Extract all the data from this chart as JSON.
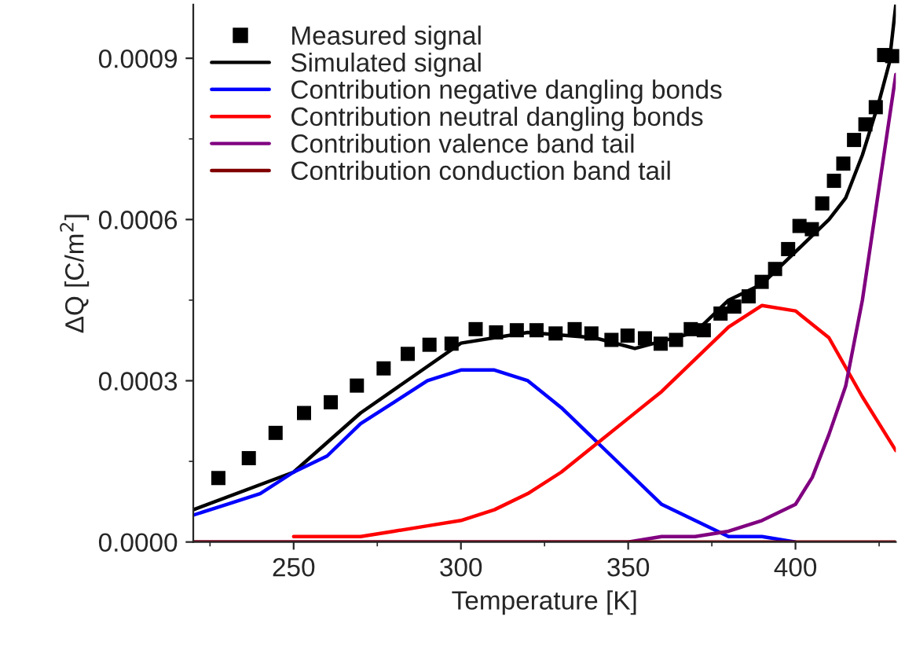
{
  "chart_data": {
    "type": "line",
    "xlabel": "Temperature [K]",
    "ylabel": "ΔQ [C/m$^{2}$]",
    "xlim": [
      220,
      430
    ],
    "xticks": [
      250,
      300,
      350,
      400
    ],
    "ylim": [
      0,
      0.001
    ],
    "yticks": [
      {
        "value": 0,
        "label": "0.0000"
      },
      {
        "value": 0.0003,
        "label": "0.0003"
      },
      {
        "value": 0.0006,
        "label": "0.0006"
      },
      {
        "value": 0.0009,
        "label": "0.0009"
      }
    ],
    "grid": false,
    "legend": "top left",
    "series": [
      {
        "name": "Measured signal",
        "type": "scatter",
        "marker": "square",
        "color": "#000000",
        "x": [
          227.5,
          236.6,
          244.6,
          253.1,
          261.1,
          268.9,
          276.9,
          284.1,
          290.6,
          297.2,
          304.4,
          310.5,
          316.7,
          322.6,
          328.3,
          334,
          339,
          345,
          349.8,
          355,
          359.7,
          364.3,
          368.7,
          372.6,
          377.6,
          381.7,
          386,
          389.9,
          393.9,
          397.8,
          401.2,
          404.9,
          408,
          411.5,
          414.3,
          417.5,
          420.9,
          424,
          426.5,
          428.9
        ],
        "values": [
          0.000119,
          0.000156,
          0.000203,
          0.00024,
          0.00026,
          0.000291,
          0.000323,
          0.00035,
          0.000367,
          0.000369,
          0.000396,
          0.00039,
          0.000394,
          0.000394,
          0.000388,
          0.000396,
          0.000388,
          0.000376,
          0.000384,
          0.000379,
          0.000369,
          0.000376,
          0.000396,
          0.000394,
          0.000425,
          0.000438,
          0.000457,
          0.000484,
          0.000508,
          0.000545,
          0.000588,
          0.000582,
          0.00063,
          0.000672,
          0.000704,
          0.000748,
          0.000777,
          0.000809,
          0.000906,
          0.000904
        ]
      },
      {
        "name": "Simulated signal",
        "color": "#000000",
        "x": [
          220,
          250,
          270,
          300,
          320,
          340,
          352,
          370,
          380,
          390,
          400,
          410,
          415,
          420,
          425,
          428,
          430
        ],
        "values": [
          6e-05,
          0.00013,
          0.00024,
          0.00037,
          0.00039,
          0.00038,
          0.00036,
          0.00039,
          0.00045,
          0.00048,
          0.00054,
          0.0006,
          0.00064,
          0.00072,
          0.00082,
          0.00089,
          0.001
        ]
      },
      {
        "name": "Contribution negative dangling bonds",
        "color": "#0000ff",
        "x": [
          220,
          230,
          240,
          250,
          260,
          270,
          280,
          290,
          300,
          310,
          320,
          330,
          340,
          350,
          360,
          370,
          380,
          390,
          400
        ],
        "values": [
          5e-05,
          7e-05,
          9e-05,
          0.00013,
          0.00016,
          0.00022,
          0.00026,
          0.0003,
          0.00032,
          0.00032,
          0.0003,
          0.00025,
          0.00019,
          0.00013,
          7e-05,
          4e-05,
          1e-05,
          1e-05,
          0
        ]
      },
      {
        "name": "Contribution neutral dangling bonds",
        "color": "#ff0000",
        "x": [
          250,
          260,
          270,
          280,
          290,
          300,
          310,
          320,
          330,
          340,
          350,
          360,
          370,
          380,
          390,
          400,
          410,
          420,
          430
        ],
        "values": [
          1e-05,
          1e-05,
          1e-05,
          2e-05,
          3e-05,
          4e-05,
          6e-05,
          9e-05,
          0.00013,
          0.00018,
          0.00023,
          0.00028,
          0.00034,
          0.0004,
          0.00044,
          0.00043,
          0.00038,
          0.00027,
          0.00017
        ]
      },
      {
        "name": "Contribution valence band tail",
        "color": "#800080",
        "x": [
          220,
          340,
          350,
          360,
          370,
          380,
          390,
          400,
          405,
          410,
          415,
          420,
          425,
          430
        ],
        "values": [
          0,
          0,
          0,
          1e-05,
          1e-05,
          2e-05,
          4e-05,
          7e-05,
          0.00012,
          0.0002,
          0.00029,
          0.00045,
          0.00066,
          0.00087
        ]
      },
      {
        "name": "Contribution conduction band tail",
        "color": "#800000",
        "x": [
          220,
          250,
          300,
          350,
          400,
          430
        ],
        "values": [
          0,
          0,
          0,
          0,
          0,
          0
        ]
      }
    ]
  }
}
